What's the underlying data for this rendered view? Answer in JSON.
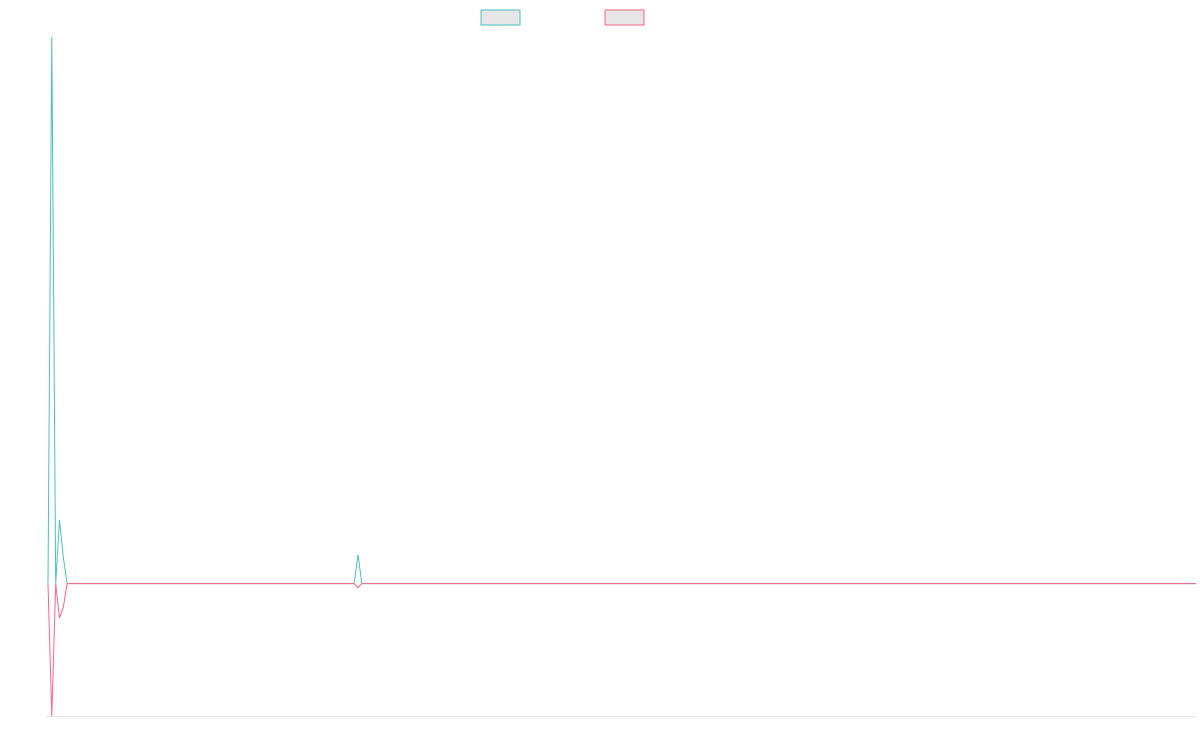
{
  "chart_data": {
    "type": "line",
    "title": "",
    "xlabel": "",
    "ylabel": "",
    "legend_position": "top-center",
    "grid": false,
    "x_range": [
      0,
      300
    ],
    "ylim": [
      -100,
      413
    ],
    "series": [
      {
        "name": "",
        "color": "#4bc0c0",
        "legend_fill": "#e6e6e6",
        "x": [
          0,
          1,
          2,
          3,
          4,
          5,
          80,
          81,
          82,
          300
        ],
        "y": [
          0,
          413,
          0,
          48,
          20,
          0,
          0,
          22,
          0,
          0
        ]
      },
      {
        "name": "",
        "color": "#ff6384",
        "legend_fill": "#e6e6e6",
        "x": [
          0,
          1,
          2,
          3,
          4,
          5,
          80,
          81,
          82,
          300
        ],
        "y": [
          0,
          -100,
          0,
          -26,
          -18,
          0,
          0,
          -3,
          0,
          0
        ]
      }
    ]
  }
}
